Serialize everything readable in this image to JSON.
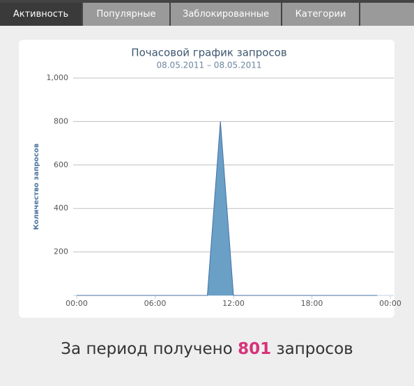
{
  "tabs": [
    "Активность",
    "Популярные",
    "Заблокированные",
    "Категории"
  ],
  "chart_data": {
    "type": "area",
    "title": "Почасовой график запросов",
    "subtitle": "08.05.2011 – 08.05.2011",
    "y_label": "Количество запросов",
    "x": [
      0,
      1,
      2,
      3,
      4,
      5,
      6,
      7,
      8,
      9,
      10,
      11,
      12,
      13,
      14,
      15,
      16,
      17,
      18,
      19,
      20,
      21,
      22,
      23
    ],
    "values": [
      0,
      0,
      0,
      0,
      0,
      0,
      0,
      0,
      0,
      0,
      0,
      801,
      0,
      0,
      0,
      0,
      0,
      0,
      0,
      0,
      0,
      0,
      0,
      0
    ],
    "color": "#6a9fc6",
    "line_color": "#4572a7",
    "xlim": [
      0,
      24
    ],
    "xticks": [
      {
        "value": 0,
        "label": "00:00"
      },
      {
        "value": 6,
        "label": "06:00"
      },
      {
        "value": 12,
        "label": "12:00"
      },
      {
        "value": 18,
        "label": "18:00"
      },
      {
        "value": 24,
        "label": "00:00"
      }
    ],
    "ylim": [
      0,
      1000
    ],
    "yticks": [
      200,
      400,
      600,
      800,
      {
        "value": 1000,
        "label": "1,000"
      }
    ],
    "grid": true
  },
  "summary": {
    "text": "За период получено",
    "count": 801,
    "unit": "запросов"
  }
}
